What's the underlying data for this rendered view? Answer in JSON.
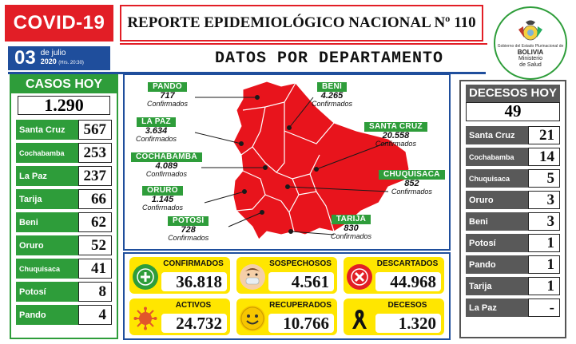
{
  "header": {
    "badge": "COVID-19",
    "title": "REPORTE EPIDEMIOLÓGICO NACIONAL Nº 110",
    "subtitle": "DATOS POR DEPARTAMENTO",
    "date_day": "03",
    "date_month": "de julio",
    "date_year": "2020",
    "date_time": "(Hrs. 20:30)"
  },
  "logo": {
    "small_text": "Gobierno del Estado Plurinacional de",
    "country": "BOLIVIA",
    "ministry_line1": "Ministerio",
    "ministry_line2": "de Salud"
  },
  "casos_hoy": {
    "title": "CASOS HOY",
    "total": "1.290",
    "rows": [
      {
        "name": "Santa Cruz",
        "value": "567"
      },
      {
        "name": "Cochabamba",
        "value": "253"
      },
      {
        "name": "La Paz",
        "value": "237"
      },
      {
        "name": "Tarija",
        "value": "66"
      },
      {
        "name": "Beni",
        "value": "62"
      },
      {
        "name": "Oruro",
        "value": "52"
      },
      {
        "name": "Chuquisaca",
        "value": "41"
      },
      {
        "name": "Potosí",
        "value": "8"
      },
      {
        "name": "Pando",
        "value": "4"
      }
    ]
  },
  "decesos_hoy": {
    "title": "DECESOS HOY",
    "total": "49",
    "rows": [
      {
        "name": "Santa Cruz",
        "value": "21"
      },
      {
        "name": "Cochabamba",
        "value": "14"
      },
      {
        "name": "Chuquisaca",
        "value": "5"
      },
      {
        "name": "Oruro",
        "value": "3"
      },
      {
        "name": "Beni",
        "value": "3"
      },
      {
        "name": "Potosí",
        "value": "1"
      },
      {
        "name": "Pando",
        "value": "1"
      },
      {
        "name": "Tarija",
        "value": "1"
      },
      {
        "name": "La Paz",
        "value": "-"
      }
    ]
  },
  "map": {
    "confirmed_word": "Confirmados",
    "departments": [
      {
        "name": "PANDO",
        "value": "717"
      },
      {
        "name": "BENI",
        "value": "4.265"
      },
      {
        "name": "LA PAZ",
        "value": "3.634"
      },
      {
        "name": "SANTA CRUZ",
        "value": "20.558"
      },
      {
        "name": "COCHABAMBA",
        "value": "4.089"
      },
      {
        "name": "CHUQUISACA",
        "value": "852"
      },
      {
        "name": "ORURO",
        "value": "1.145"
      },
      {
        "name": "POTOSÍ",
        "value": "728"
      },
      {
        "name": "TARIJA",
        "value": "830"
      }
    ],
    "colors": {
      "map_fill": "#e8141c",
      "label_green": "#2e9d3a"
    }
  },
  "totals": [
    {
      "label": "CONFIRMADOS",
      "value": "36.818",
      "icon": "plus-icon"
    },
    {
      "label": "SOSPECHOSOS",
      "value": "4.561",
      "icon": "mask-face-icon"
    },
    {
      "label": "DESCARTADOS",
      "value": "44.968",
      "icon": "x-circle-icon"
    },
    {
      "label": "ACTIVOS",
      "value": "24.732",
      "icon": "virus-icon"
    },
    {
      "label": "RECUPERADOS",
      "value": "10.766",
      "icon": "smiley-icon"
    },
    {
      "label": "DECESOS",
      "value": "1.320",
      "icon": "mourning-ribbon-icon"
    }
  ],
  "colors": {
    "red": "#e21e26",
    "green": "#2e9d3a",
    "blue": "#1f4e9c",
    "gray": "#595959",
    "yellow": "#ffe600"
  }
}
